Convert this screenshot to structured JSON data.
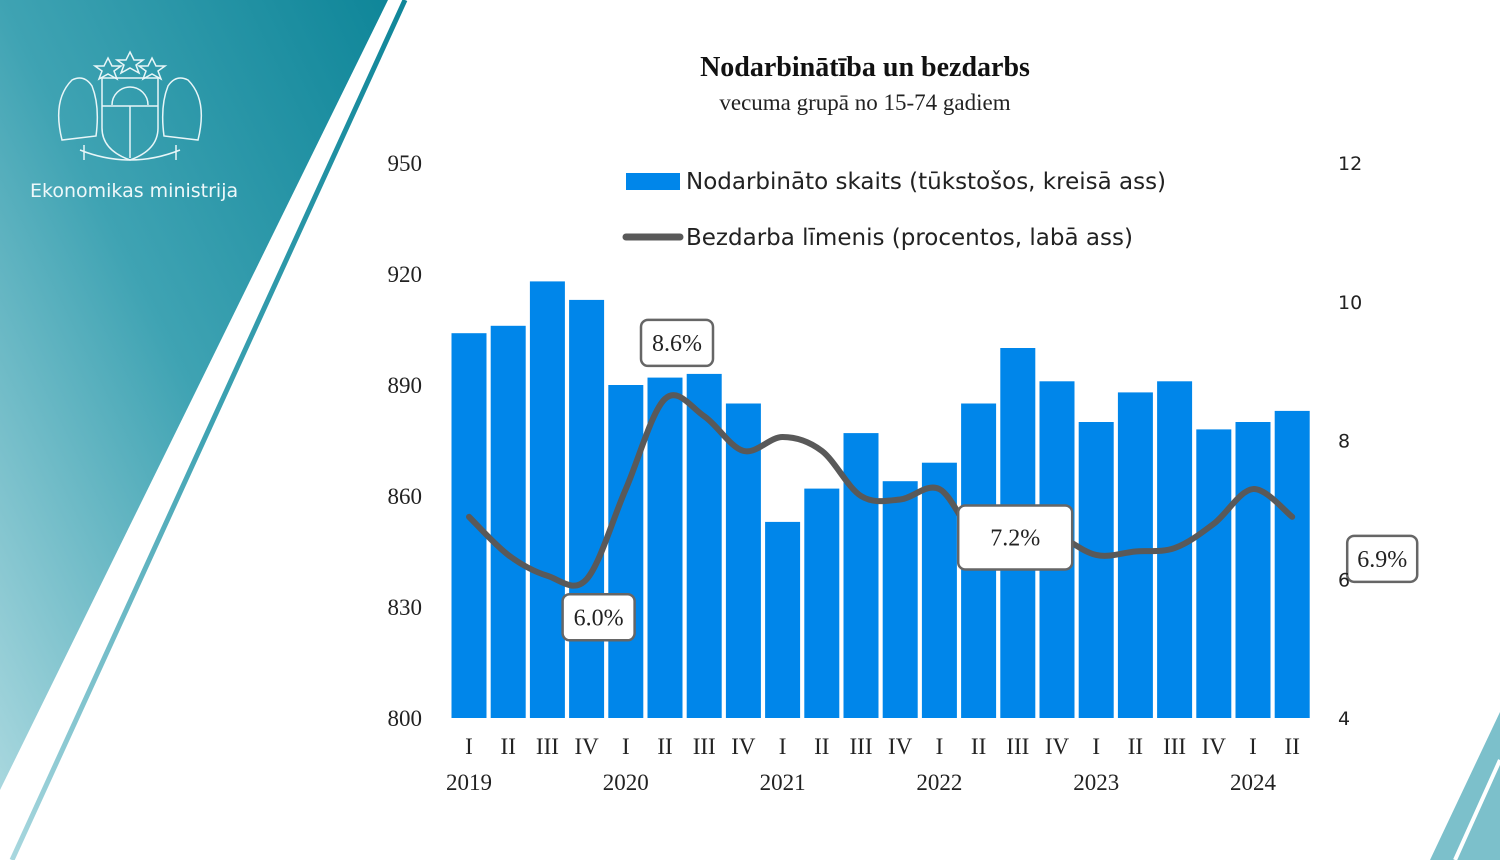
{
  "brand": {
    "name": "Ekonomikas ministrija",
    "logo": "latvia-coat-of-arms"
  },
  "colors": {
    "bars": "#0086EA",
    "line": "#595959",
    "panel": "#1a8fa3"
  },
  "chart_data": {
    "type": "bar+line",
    "title": "Nodarbinātība un bezdarbs",
    "subtitle": "vecuma grupā no 15-74 gadiem",
    "quarters": [
      "I",
      "II",
      "III",
      "IV",
      "I",
      "II",
      "III",
      "IV",
      "I",
      "II",
      "III",
      "IV",
      "I",
      "II",
      "III",
      "IV",
      "I",
      "II",
      "III",
      "IV",
      "I",
      "II"
    ],
    "years": [
      "2019",
      "2020",
      "2021",
      "2022",
      "2023",
      "2024"
    ],
    "left_axis": {
      "ylim": [
        800,
        950
      ],
      "ticks": [
        "800",
        "830",
        "860",
        "890",
        "920",
        "950"
      ]
    },
    "right_axis": {
      "ylim": [
        4,
        12
      ],
      "ticks": [
        "4",
        "6",
        "8",
        "10",
        "12"
      ]
    },
    "legend_placement": "top",
    "series": [
      {
        "name": "Nodarbināto skaits (tūkstošos, kreisā ass)",
        "type": "bar",
        "axis": "left",
        "values": [
          904,
          906,
          918,
          913,
          890,
          892,
          893,
          885,
          853,
          862,
          877,
          864,
          869,
          885,
          900,
          891,
          880,
          888,
          891,
          878,
          880,
          883
        ]
      },
      {
        "name": "Bezdarba līmenis (procentos, labā ass)",
        "type": "line",
        "axis": "right",
        "values": [
          6.9,
          6.35,
          6.05,
          6.0,
          7.3,
          8.6,
          8.35,
          7.85,
          8.05,
          7.85,
          7.2,
          7.15,
          7.3,
          6.6,
          6.9,
          6.65,
          6.35,
          6.4,
          6.45,
          6.8,
          7.3,
          6.9
        ]
      }
    ],
    "data_labels": [
      {
        "index": 3,
        "text": "6.0%"
      },
      {
        "index": 5,
        "text": "8.6%"
      },
      {
        "index": 11,
        "text": "7.2%"
      },
      {
        "index": 21,
        "text": "6.9%"
      }
    ]
  }
}
